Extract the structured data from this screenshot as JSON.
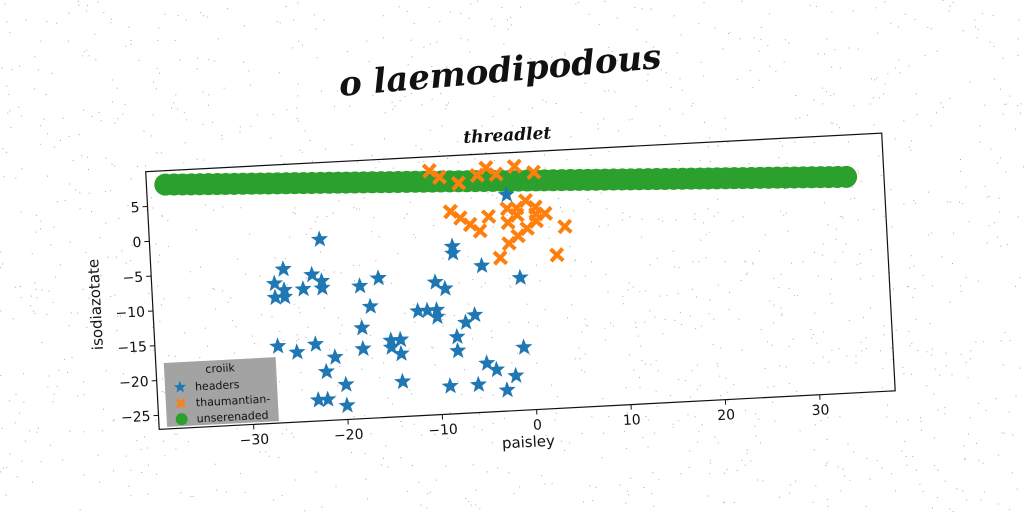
{
  "chart_data": {
    "type": "scatter",
    "suptitle": "o laemodipodous",
    "title": "threadlet",
    "xlabel": "paisley",
    "ylabel": "isodiazotate",
    "xlim": [
      -40,
      38
    ],
    "ylim": [
      -27,
      10
    ],
    "xticks": [
      -30,
      -20,
      -10,
      0,
      10,
      20,
      30
    ],
    "yticks": [
      5,
      0,
      -5,
      -10,
      -15,
      -20,
      -25
    ],
    "xtick_labels": [
      "−30",
      "−20",
      "−10",
      "0",
      "10",
      "20",
      "30"
    ],
    "ytick_labels": [
      "5",
      "0",
      "−5",
      "−10",
      "−15",
      "−20",
      "−25"
    ],
    "grid": false,
    "legend": {
      "title": "croiik",
      "placement": "lower-left",
      "entries": [
        "headers",
        "thaumantian-",
        "unserenaded"
      ]
    },
    "series": [
      {
        "name": "headers",
        "marker": "star",
        "color": "#1f77b4",
        "x": [
          -22,
          -26,
          -27,
          -23,
          -24,
          -26,
          -27,
          -22,
          -26,
          -16,
          -22,
          -23,
          -27,
          -14,
          -25,
          -18,
          -21,
          -18,
          -14,
          -20,
          -14,
          -15,
          -17,
          -18,
          -22,
          -23,
          -22,
          -20,
          -14,
          -15,
          -12,
          -8,
          -10,
          -5,
          -10,
          -7,
          -9,
          -11,
          -6,
          -10,
          -8,
          -8,
          -9,
          -8,
          -5,
          -4,
          -6,
          -3,
          -2,
          -1,
          -1,
          -2
        ],
        "y": [
          -1,
          -5,
          -7,
          -6,
          -8,
          -8,
          -9,
          -8,
          -9,
          -7,
          -7,
          -16,
          -16,
          -16,
          -17,
          -8,
          -18,
          -14,
          -18,
          -22,
          -22,
          -17,
          -11,
          -17,
          -20,
          -24,
          -24,
          -25,
          -16,
          -16,
          -12,
          -4,
          -8,
          -6,
          -12,
          -14,
          -9,
          -12,
          -13,
          -13,
          -16,
          -18,
          -23,
          -3,
          -20,
          -21,
          -23,
          -24,
          -22,
          -18,
          -8,
          4
        ]
      },
      {
        "name": "thaumantian-",
        "marker": "x",
        "color": "#ff7f0e",
        "x": [
          -10,
          -9,
          -7,
          -5,
          -4,
          -3,
          -1,
          1,
          -8,
          -7,
          -6,
          -5,
          -4,
          -2,
          -1,
          -1,
          0,
          1,
          2,
          -2,
          -1,
          0,
          1,
          3,
          4,
          -3,
          -2,
          1,
          -8
        ],
        "y": [
          8,
          7,
          6,
          7,
          8,
          7,
          8,
          7,
          2,
          1,
          0,
          -1,
          1,
          0,
          1,
          2,
          3,
          2,
          1,
          -3,
          -2,
          -1,
          0,
          -5,
          -1,
          -5,
          2,
          1,
          2
        ]
      },
      {
        "name": "unserenaded",
        "marker": "circle",
        "color": "#2ca02c",
        "x_start": -38,
        "y_start": 8,
        "x_end": 34,
        "y_end": 4,
        "count": 80
      }
    ]
  }
}
